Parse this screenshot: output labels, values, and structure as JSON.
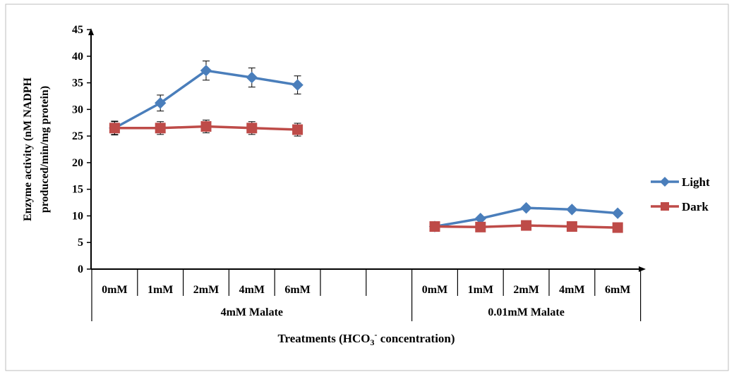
{
  "chart_data": {
    "type": "line",
    "ylabel_lines": [
      "Enzyme activity (nM NADPH",
      "produced/min/mg protein)"
    ],
    "xlabel": {
      "main": "Treatments (HCO",
      "sub": "3",
      "sup": "-",
      "tail": " concentration)"
    },
    "ylim": [
      0,
      45
    ],
    "yticks": [
      "0",
      "5",
      "10",
      "15",
      "20",
      "25",
      "30",
      "35",
      "40",
      "45"
    ],
    "categories": [
      "0mM",
      "1mM",
      "2mM",
      "4mM",
      "6mM",
      "",
      "",
      "0mM",
      "1mM",
      "2mM",
      "4mM",
      "6mM"
    ],
    "groups": [
      {
        "label": "4mM Malate",
        "start": 0,
        "end": 6
      },
      {
        "label": "0.01mM Malate",
        "start": 7,
        "end": 11
      }
    ],
    "legend_position": "right",
    "series": [
      {
        "name": "Light",
        "color": "#4a7ebb",
        "marker": "diamond",
        "segments": [
          {
            "x": [
              0,
              1,
              2,
              3,
              4
            ],
            "y": [
              26.5,
              31.2,
              37.3,
              36.0,
              34.6
            ],
            "err": [
              1.3,
              1.5,
              1.8,
              1.8,
              1.7
            ]
          },
          {
            "x": [
              7,
              8,
              9,
              10,
              11
            ],
            "y": [
              8.0,
              9.5,
              11.5,
              11.2,
              10.5
            ]
          }
        ]
      },
      {
        "name": "Dark",
        "color": "#be4b48",
        "marker": "square",
        "segments": [
          {
            "x": [
              0,
              1,
              2,
              3,
              4
            ],
            "y": [
              26.5,
              26.5,
              26.8,
              26.5,
              26.2
            ],
            "err": [
              1.2,
              1.2,
              1.2,
              1.2,
              1.2
            ]
          },
          {
            "x": [
              7,
              8,
              9,
              10,
              11
            ],
            "y": [
              8.0,
              7.9,
              8.2,
              8.0,
              7.8
            ]
          }
        ]
      }
    ]
  }
}
